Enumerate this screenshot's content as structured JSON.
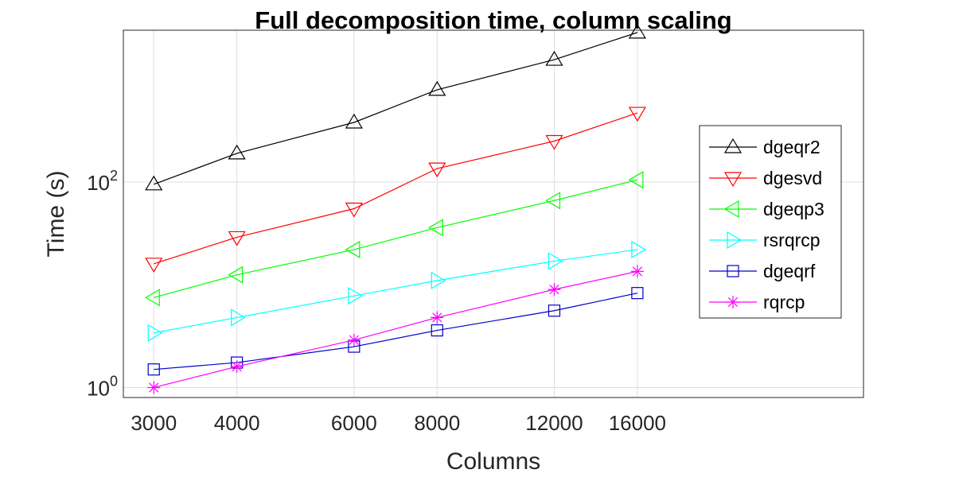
{
  "chart_data": {
    "type": "line",
    "title": "Full decomposition time, column scaling",
    "xlabel": "Columns",
    "ylabel": "Time (s)",
    "xscale": "log",
    "yscale": "log",
    "xlim": [
      2700,
      35000
    ],
    "ylim": [
      0.8,
      3000
    ],
    "grid": true,
    "legend_position": "right",
    "x_ticks": [
      "3000",
      "4000",
      "6000",
      "8000",
      "12000",
      "16000"
    ],
    "y_ticks": [
      {
        "base": "10",
        "exp": "0",
        "value": 1
      },
      {
        "base": "10",
        "exp": "2",
        "value": 100
      }
    ],
    "x": [
      3000,
      4000,
      6000,
      8000,
      12000,
      16000
    ],
    "series": [
      {
        "name": "dgeqr2",
        "color": "#000000",
        "marker": "triangle-up",
        "values": [
          95,
          190,
          380,
          790,
          1550,
          2850
        ]
      },
      {
        "name": "dgesvd",
        "color": "#ff0000",
        "marker": "triangle-down",
        "values": [
          16,
          29,
          55,
          135,
          250,
          470
        ]
      },
      {
        "name": "dgeqp3",
        "color": "#00ff00",
        "marker": "triangle-left",
        "values": [
          7.5,
          12.5,
          22,
          36,
          66,
          105
        ]
      },
      {
        "name": "rsrqrcp",
        "color": "#00ffff",
        "marker": "triangle-right",
        "values": [
          3.4,
          4.8,
          7.8,
          11,
          17,
          22
        ]
      },
      {
        "name": "dgeqrf",
        "color": "#0000cc",
        "marker": "square",
        "values": [
          1.5,
          1.75,
          2.5,
          3.6,
          5.6,
          8.3
        ]
      },
      {
        "name": "rqrcp",
        "color": "#ff00ff",
        "marker": "asterisk",
        "values": [
          1.0,
          1.6,
          2.9,
          4.8,
          9.0,
          13.5
        ]
      }
    ]
  }
}
